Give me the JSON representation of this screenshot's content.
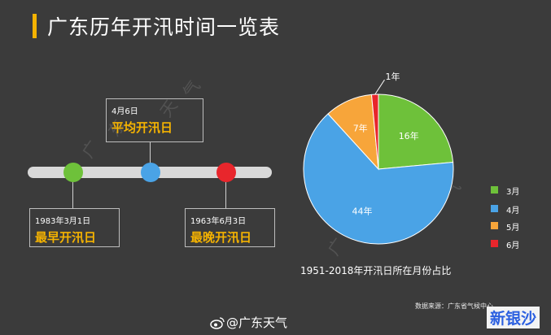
{
  "title": "广东历年开汛时间一览表",
  "timeline": {
    "average": {
      "date": "4月6日",
      "label": "平均开汛日"
    },
    "earliest": {
      "date": "1983年3月1日",
      "label": "最早开汛日"
    },
    "latest": {
      "date": "1963年6月3日",
      "label": "最晚开汛日"
    }
  },
  "chart_data": {
    "type": "pie",
    "title": "1951-2018年开汛日所在月份占比",
    "categories": [
      "3月",
      "4月",
      "5月",
      "6月"
    ],
    "values": [
      16,
      44,
      7,
      1
    ],
    "value_labels": [
      "16年",
      "44年",
      "7年",
      "1年"
    ],
    "colors": [
      "#6ec13a",
      "#4aa3e6",
      "#f7a53a",
      "#e8262c"
    ],
    "legend": {
      "position": "right",
      "items": [
        "3月",
        "4月",
        "5月",
        "6月"
      ]
    }
  },
  "source": "数据来源：广东省气候中心",
  "watermark_text": [
    "广",
    "东",
    "天",
    "气"
  ],
  "weibo_handle": "@广东天气",
  "logo_text": "新银沙",
  "icons": {
    "weibo": "weibo-icon"
  }
}
